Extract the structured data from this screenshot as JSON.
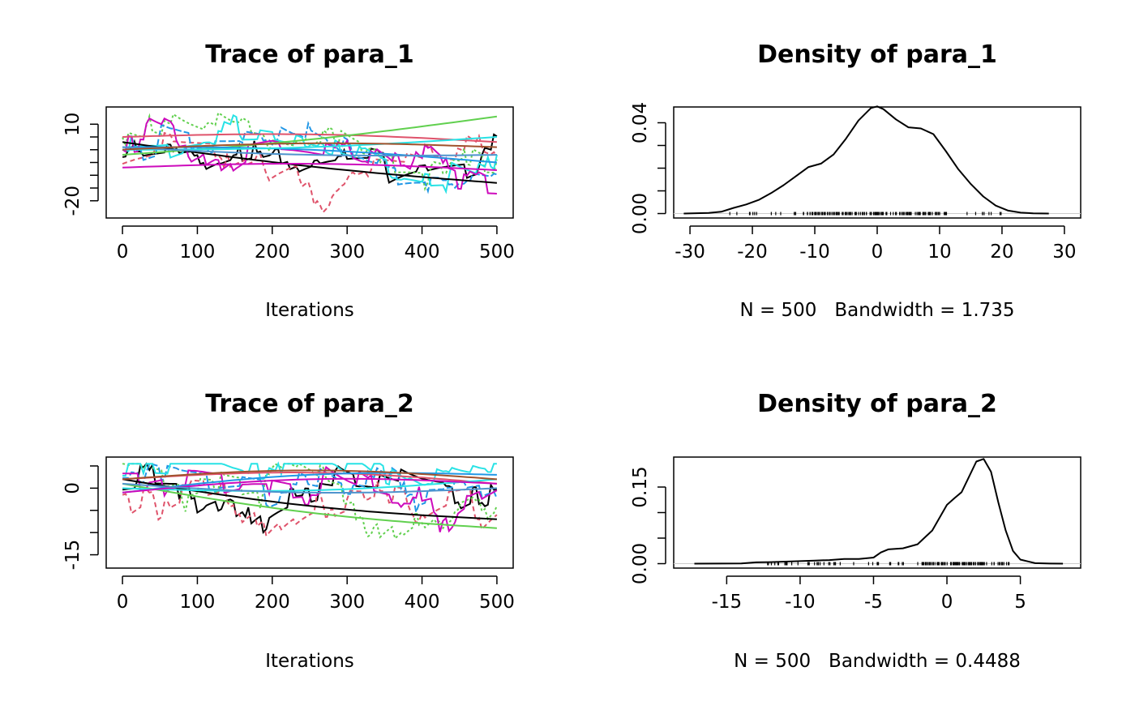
{
  "chart_data": [
    {
      "type": "line",
      "title": "Trace of para_1",
      "xlabel": "Iterations",
      "xlim": [
        0,
        500
      ],
      "ylim": [
        -25,
        15
      ],
      "x_ticks": [
        0,
        100,
        200,
        300,
        400,
        500
      ],
      "y_ticks": [
        -20,
        -15,
        -10,
        -5,
        0,
        5,
        10
      ],
      "y_tick_labels": [
        "-20",
        "",
        "",
        "",
        "",
        "",
        "10"
      ],
      "series_colors": [
        "#000000",
        "#DF536B",
        "#61D04F",
        "#2297E6",
        "#28E2E5",
        "#CD0BBC"
      ],
      "smooth_colors": [
        "#000000",
        "#DF536B",
        "#61D04F",
        "#2297E6",
        "#28E2E5",
        "#CD0BBC",
        "#4F94CD",
        "#A0522D"
      ],
      "smooth_ends": [
        [
          3,
          -13
        ],
        [
          5,
          3
        ],
        [
          -2,
          13
        ],
        [
          1,
          -5
        ],
        [
          0,
          5
        ],
        [
          -7,
          -8
        ],
        [
          1,
          -2
        ],
        [
          0,
          1
        ]
      ],
      "trace_mean_curve": [
        [
          0,
          0
        ],
        [
          100,
          2
        ],
        [
          200,
          3
        ],
        [
          300,
          -2
        ],
        [
          400,
          -8
        ],
        [
          500,
          -10
        ]
      ]
    },
    {
      "type": "line",
      "title": "Density of para_1",
      "xlabel": "N = 500   Bandwidth = 1.735",
      "xlim": [
        -30,
        30
      ],
      "ylim": [
        0,
        0.045
      ],
      "x_ticks": [
        -30,
        -20,
        -10,
        0,
        10,
        20,
        30
      ],
      "y_ticks": [
        0,
        0.01,
        0.02,
        0.03,
        0.04
      ],
      "y_tick_labels": [
        "0.00",
        "",
        "",
        "",
        "0.04"
      ],
      "density": {
        "x": [
          -31,
          -27,
          -25,
          -23,
          -21,
          -19,
          -17,
          -15,
          -13,
          -11,
          -9,
          -7,
          -5,
          -3,
          -1,
          0,
          1,
          3,
          5,
          7,
          9,
          11,
          13,
          15,
          17,
          19,
          21,
          23,
          25,
          27.5
        ],
        "y": [
          0,
          0.0003,
          0.0008,
          0.0025,
          0.004,
          0.006,
          0.009,
          0.0125,
          0.0165,
          0.0205,
          0.022,
          0.026,
          0.033,
          0.041,
          0.0465,
          0.0472,
          0.046,
          0.0415,
          0.038,
          0.0375,
          0.035,
          0.0275,
          0.0195,
          0.013,
          0.0075,
          0.0035,
          0.0013,
          0.0004,
          0.0001,
          0
        ]
      },
      "rug_range": [
        -24,
        21
      ]
    },
    {
      "type": "line",
      "title": "Trace of para_2",
      "xlabel": "Iterations",
      "xlim": [
        0,
        500
      ],
      "ylim": [
        -17,
        6
      ],
      "x_ticks": [
        0,
        100,
        200,
        300,
        400,
        500
      ],
      "y_ticks": [
        -15,
        -10,
        -5,
        0,
        5
      ],
      "y_tick_labels": [
        "-15",
        "",
        "",
        "0",
        ""
      ],
      "series_colors": [
        "#000000",
        "#DF536B",
        "#61D04F",
        "#2297E6",
        "#28E2E5",
        "#CD0BBC"
      ],
      "smooth_colors": [
        "#000000",
        "#DF536B",
        "#61D04F",
        "#2297E6",
        "#28E2E5",
        "#CD0BBC",
        "#4F94CD",
        "#A0522D"
      ],
      "smooth_ends": [
        [
          2,
          -7
        ],
        [
          2,
          1
        ],
        [
          1,
          -9
        ],
        [
          -1,
          3
        ],
        [
          0,
          2
        ],
        [
          -1,
          1
        ],
        [
          1,
          0
        ],
        [
          2,
          2
        ]
      ],
      "trace_mean_curve": [
        [
          0,
          2
        ],
        [
          100,
          2
        ],
        [
          200,
          1
        ],
        [
          300,
          -1
        ],
        [
          400,
          -2
        ],
        [
          500,
          1
        ]
      ]
    },
    {
      "type": "line",
      "title": "Density of para_2",
      "xlabel": "N = 500   Bandwidth = 0.4488",
      "xlim": [
        -17.5,
        8
      ],
      "ylim": [
        0,
        0.2
      ],
      "x_ticks": [
        -15,
        -10,
        -5,
        0,
        5
      ],
      "y_ticks": [
        0,
        0.05,
        0.1,
        0.15
      ],
      "y_tick_labels": [
        "0.00",
        "",
        "",
        "0.15"
      ],
      "density": {
        "x": [
          -17.2,
          -14,
          -13,
          -12,
          -11,
          -10,
          -9,
          -8,
          -7,
          -6,
          -5,
          -4.5,
          -4,
          -3,
          -2,
          -1,
          0,
          0.5,
          1,
          1.5,
          2,
          2.5,
          3,
          3.5,
          4,
          4.5,
          5,
          6,
          7,
          7.9
        ],
        "y": [
          0,
          0.0005,
          0.0025,
          0.003,
          0.004,
          0.005,
          0.006,
          0.007,
          0.009,
          0.009,
          0.012,
          0.022,
          0.028,
          0.03,
          0.038,
          0.065,
          0.115,
          0.128,
          0.14,
          0.17,
          0.2,
          0.205,
          0.18,
          0.12,
          0.065,
          0.025,
          0.008,
          0.001,
          0.0002,
          0
        ]
      },
      "rug_range": [
        -12.5,
        4.3
      ]
    }
  ]
}
